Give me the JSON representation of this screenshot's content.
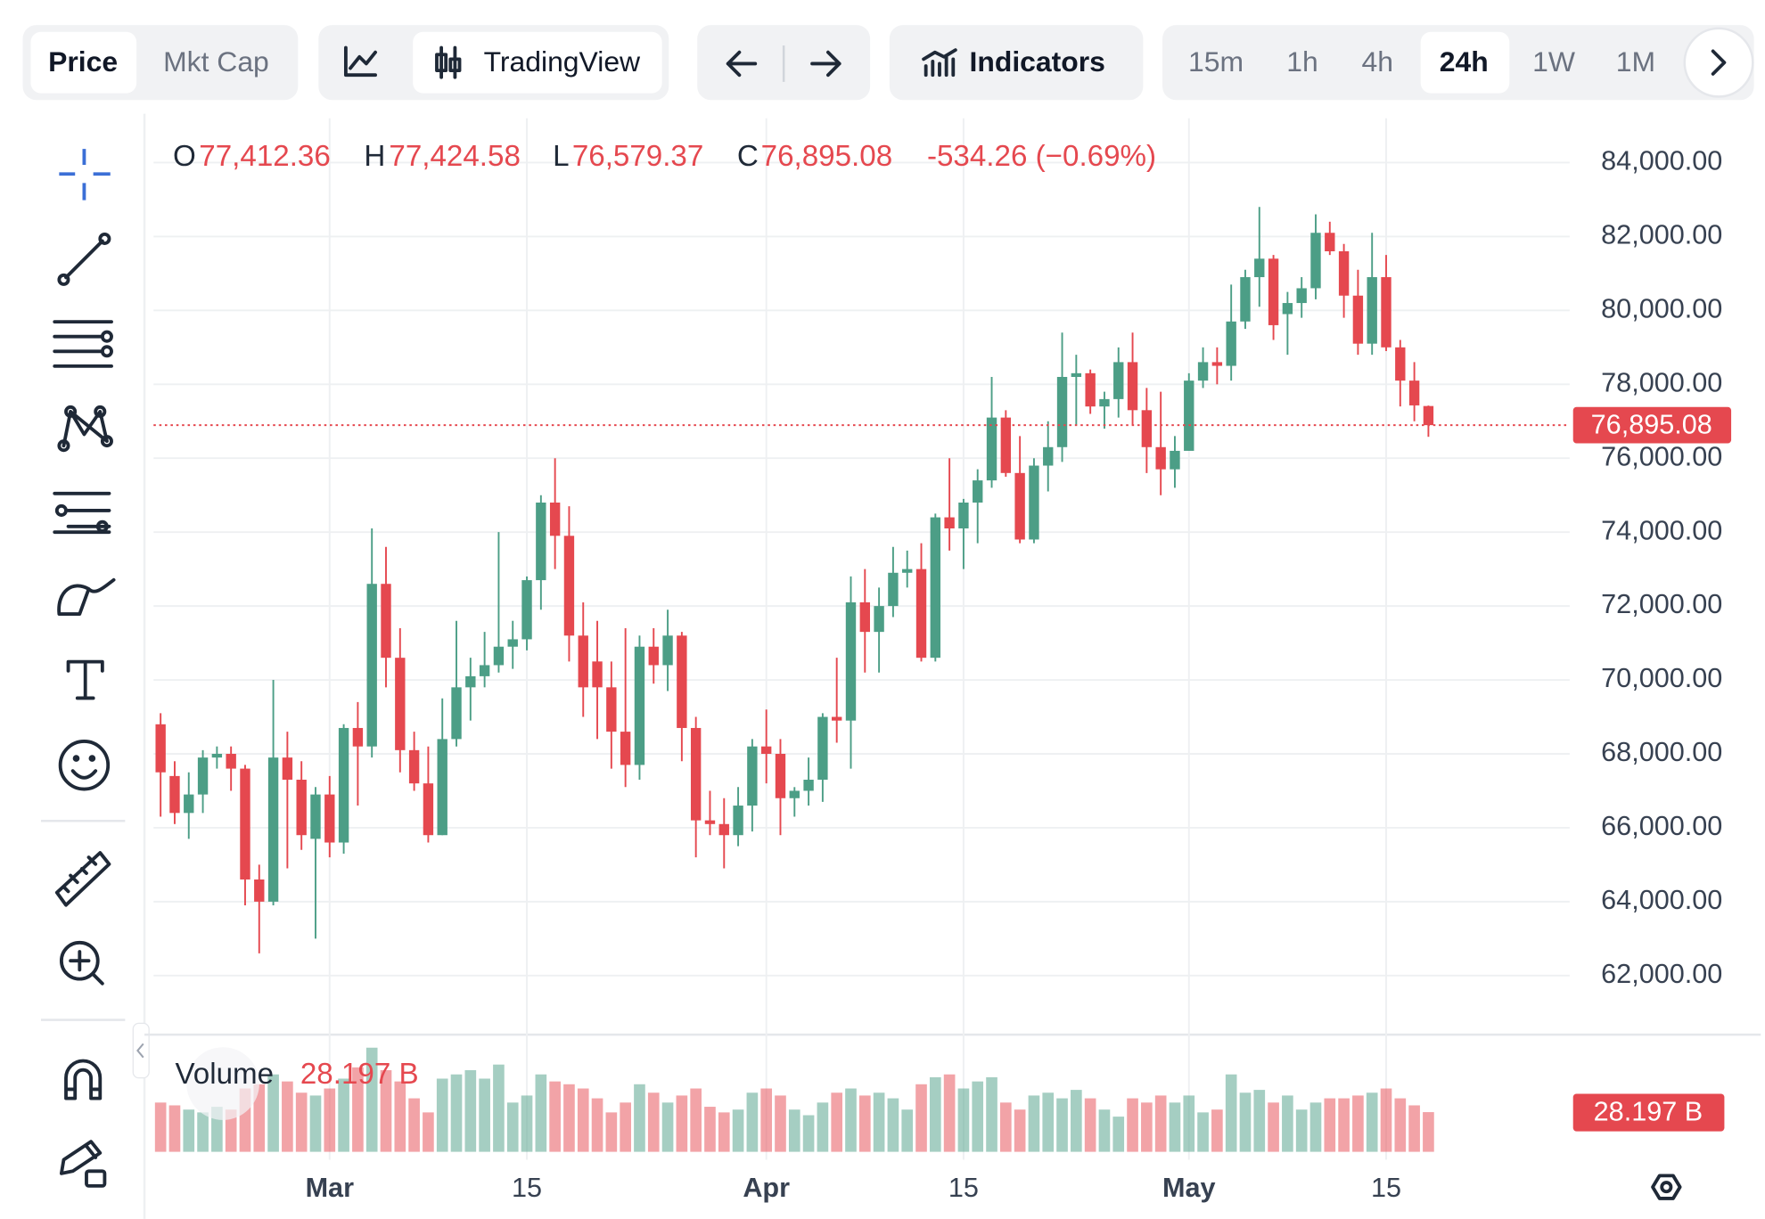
{
  "toolbar": {
    "price": "Price",
    "mkt_cap": "Mkt Cap",
    "chart_style": "TradingView",
    "indicators": "Indicators",
    "intervals": [
      "15m",
      "1h",
      "4h",
      "24h",
      "1W",
      "1M"
    ]
  },
  "chart_data": {
    "type": "candlestick",
    "categories": [
      null,
      null,
      null,
      null,
      null,
      null,
      null,
      null,
      null,
      null,
      null,
      null,
      "Mar",
      null,
      null,
      null,
      null,
      null,
      null,
      null,
      null,
      null,
      null,
      null,
      null,
      null,
      "15",
      null,
      null,
      null,
      null,
      null,
      null,
      null,
      null,
      null,
      null,
      null,
      null,
      null,
      null,
      null,
      null,
      "Apr",
      null,
      null,
      null,
      null,
      null,
      null,
      null,
      null,
      null,
      null,
      null,
      null,
      null,
      "15",
      null,
      null,
      null,
      null,
      null,
      null,
      null,
      null,
      null,
      null,
      null,
      null,
      null,
      null,
      null,
      "May",
      null,
      null,
      null,
      null,
      null,
      null,
      null,
      null,
      null,
      null,
      null,
      null,
      null,
      "15",
      null,
      null,
      null
    ],
    "open": [
      68800,
      67400,
      66400,
      66900,
      67900,
      68000,
      67600,
      64600,
      64000,
      67900,
      67300,
      65700,
      66900,
      65600,
      68700,
      68200,
      72600,
      70600,
      68100,
      67200,
      65800,
      68400,
      69800,
      70100,
      70400,
      70900,
      71100,
      72700,
      74800,
      73900,
      71200,
      70500,
      69800,
      68600,
      67700,
      70900,
      70400,
      71200,
      68700,
      66200,
      66100,
      65800,
      66600,
      68200,
      68000,
      66800,
      67000,
      67300,
      69000,
      68900,
      72100,
      71300,
      72000,
      72900,
      73000,
      70600,
      74400,
      74100,
      74800,
      75400,
      77100,
      75600,
      73800,
      75800,
      76300,
      78200,
      78300,
      77400,
      77600,
      78600,
      77300,
      76300,
      75700,
      76200,
      78100,
      78600,
      78500,
      79700,
      80900,
      81400,
      79900,
      80200,
      80600,
      82100,
      81600,
      80400,
      79100,
      80900,
      79000,
      78100,
      77412.36
    ],
    "high": [
      69100,
      67800,
      67500,
      68100,
      68200,
      68200,
      67700,
      65000,
      70000,
      68600,
      67800,
      67100,
      67400,
      68800,
      69400,
      74100,
      73600,
      71400,
      68600,
      68200,
      69500,
      71600,
      70600,
      71300,
      74000,
      71600,
      72800,
      75000,
      76000,
      74700,
      72100,
      71600,
      70500,
      71400,
      71200,
      71400,
      71900,
      71300,
      69000,
      67000,
      66800,
      67100,
      68400,
      69200,
      68400,
      67100,
      67900,
      69100,
      70600,
      72800,
      73000,
      72500,
      73600,
      73500,
      73700,
      74500,
      76000,
      74900,
      75700,
      78200,
      77300,
      76600,
      76000,
      77000,
      79400,
      78800,
      78400,
      77800,
      79000,
      79400,
      77900,
      77800,
      76600,
      78300,
      79000,
      79000,
      80700,
      81100,
      82800,
      81500,
      80500,
      80900,
      82600,
      82400,
      81800,
      81100,
      82100,
      81500,
      79200,
      78600,
      77424.58
    ],
    "low": [
      66300,
      66100,
      65700,
      66400,
      67600,
      67000,
      63900,
      62600,
      63900,
      64900,
      65400,
      63000,
      65200,
      65300,
      66600,
      67900,
      69800,
      67500,
      67000,
      65600,
      65800,
      68200,
      68900,
      69800,
      70200,
      70300,
      70800,
      71900,
      73000,
      70500,
      69000,
      68400,
      67600,
      67100,
      67300,
      69900,
      69700,
      67800,
      65200,
      65800,
      64900,
      65500,
      65900,
      67200,
      65800,
      66300,
      66600,
      66700,
      68300,
      67600,
      70200,
      70200,
      71700,
      72500,
      70500,
      70500,
      73500,
      73000,
      73700,
      75200,
      75500,
      73700,
      73700,
      75100,
      75900,
      76900,
      77200,
      76800,
      77100,
      76900,
      75600,
      75000,
      75200,
      76200,
      77900,
      78000,
      78100,
      79500,
      80100,
      79200,
      78800,
      79800,
      80300,
      81500,
      79800,
      78800,
      78800,
      78900,
      77400,
      77000,
      76579.37
    ],
    "close": [
      67500,
      66400,
      66900,
      67900,
      68000,
      67600,
      64600,
      64000,
      67900,
      67300,
      65800,
      66900,
      65600,
      68700,
      68200,
      72600,
      70600,
      68100,
      67200,
      65800,
      68400,
      69800,
      70100,
      70400,
      70900,
      71100,
      72700,
      74800,
      73900,
      71200,
      69800,
      69800,
      68600,
      67700,
      70900,
      70400,
      71200,
      68700,
      66200,
      66100,
      65800,
      66600,
      68200,
      68000,
      66800,
      67000,
      67300,
      69000,
      68900,
      72100,
      71300,
      72000,
      72900,
      73000,
      70600,
      74400,
      74100,
      74800,
      75400,
      77100,
      75600,
      73800,
      75800,
      76300,
      78200,
      78300,
      77400,
      77600,
      78600,
      77300,
      76300,
      75700,
      76200,
      78100,
      78600,
      78500,
      79700,
      80900,
      81400,
      79600,
      80200,
      80600,
      82100,
      81600,
      80400,
      79100,
      80900,
      79000,
      78100,
      77429.34,
      76895.08
    ],
    "colors": {
      "up": "#4c9e86",
      "down": "#e5484f"
    },
    "ylim": [
      60500,
      85200
    ],
    "yticks": [
      {
        "value": 62000,
        "label": "62,000.00"
      },
      {
        "value": 64000,
        "label": "64,000.00"
      },
      {
        "value": 66000,
        "label": "66,000.00"
      },
      {
        "value": 68000,
        "label": "68,000.00"
      },
      {
        "value": 70000,
        "label": "70,000.00"
      },
      {
        "value": 72000,
        "label": "72,000.00"
      },
      {
        "value": 74000,
        "label": "74,000.00"
      },
      {
        "value": 76000,
        "label": "76,000.00"
      },
      {
        "value": 78000,
        "label": "78,000.00"
      },
      {
        "value": 80000,
        "label": "80,000.00"
      },
      {
        "value": 82000,
        "label": "82,000.00"
      },
      {
        "value": 84000,
        "label": "84,000.00"
      }
    ],
    "grid": true,
    "ohlc_names": {
      "open": "O",
      "high": "H",
      "low": "L",
      "close": "C"
    },
    "last_labels": {
      "open": "77,412.36",
      "high": "77,424.58",
      "low": "76,579.37",
      "close": "76,895.08",
      "change": "-534.26 (−0.69%)"
    },
    "volume": {
      "name": "Volume",
      "ylim": [
        0,
        80
      ],
      "values": [
        35,
        33,
        30,
        28,
        32,
        30,
        45,
        48,
        55,
        50,
        42,
        40,
        45,
        52,
        60,
        74,
        58,
        50,
        38,
        28,
        52,
        55,
        58,
        52,
        62,
        35,
        40,
        55,
        50,
        48,
        45,
        38,
        28,
        35,
        48,
        42,
        35,
        40,
        45,
        32,
        28,
        30,
        42,
        45,
        40,
        30,
        26,
        35,
        42,
        45,
        40,
        42,
        38,
        30,
        48,
        53,
        55,
        45,
        50,
        53,
        35,
        30,
        40,
        42,
        38,
        44,
        38,
        30,
        25,
        38,
        35,
        40,
        35,
        40,
        28,
        30,
        55,
        42,
        44,
        35,
        40,
        30,
        35,
        38,
        38,
        40,
        42,
        45,
        38,
        33,
        28.197
      ],
      "value_labels": [
        null,
        null,
        null,
        null,
        null,
        null,
        null,
        null,
        null,
        null,
        null,
        null,
        null,
        null,
        null,
        null,
        null,
        null,
        null,
        null,
        null,
        null,
        null,
        null,
        null,
        null,
        null,
        null,
        null,
        null,
        null,
        null,
        null,
        null,
        null,
        null,
        null,
        null,
        null,
        null,
        null,
        null,
        null,
        null,
        null,
        null,
        null,
        null,
        null,
        null,
        null,
        null,
        null,
        null,
        null,
        null,
        null,
        null,
        null,
        null,
        null,
        null,
        null,
        null,
        null,
        null,
        null,
        null,
        null,
        null,
        null,
        null,
        null,
        null,
        null,
        null,
        null,
        null,
        null,
        null,
        null,
        null,
        null,
        null,
        null,
        null,
        null,
        null,
        null,
        null,
        "28.197 B"
      ]
    }
  }
}
